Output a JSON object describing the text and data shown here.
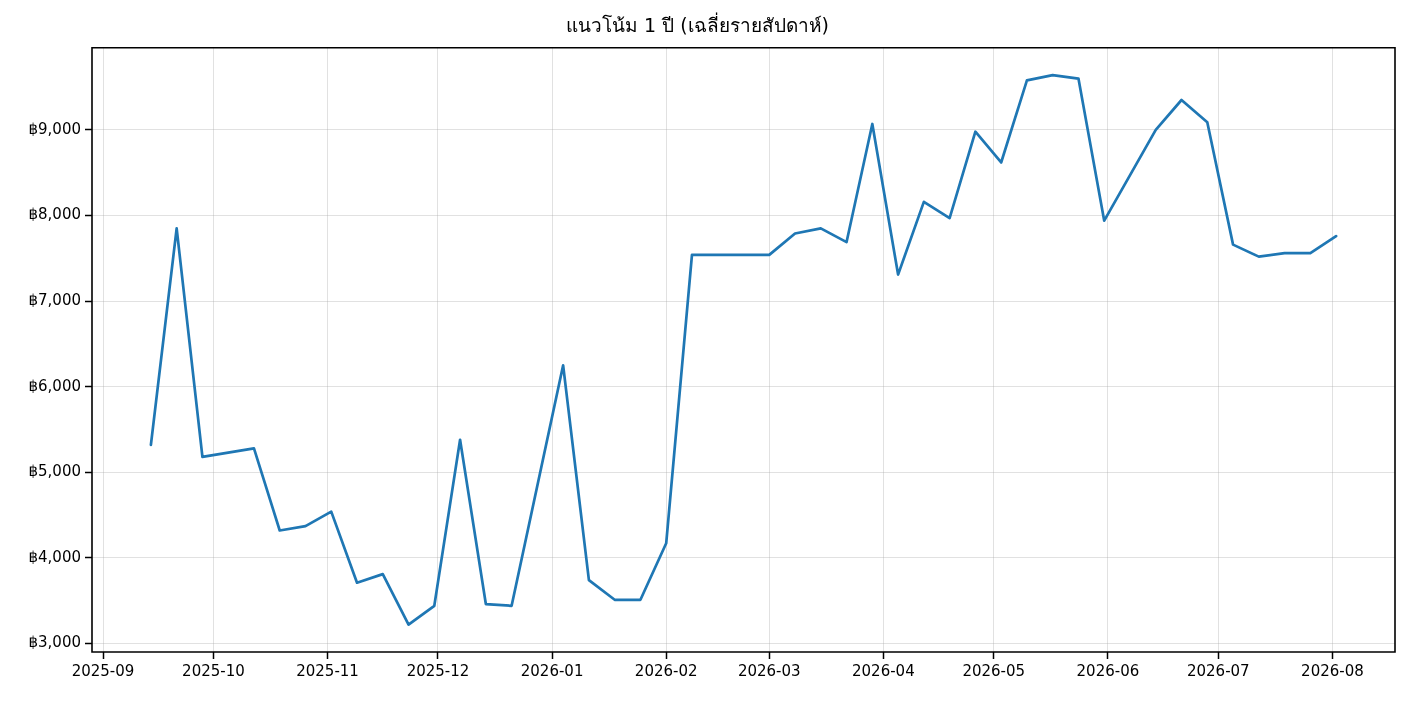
{
  "chart_data": {
    "type": "line",
    "title": "แนวโน้ม 1 ปี (เฉลี่ยรายสัปดาห์)",
    "x": [
      "2025-09-14",
      "2025-09-21",
      "2025-09-28",
      "2025-10-12",
      "2025-10-19",
      "2025-10-26",
      "2025-11-02",
      "2025-11-09",
      "2025-11-16",
      "2025-11-23",
      "2025-11-30",
      "2025-12-07",
      "2025-12-14",
      "2025-12-21",
      "2026-01-04",
      "2026-01-11",
      "2026-01-18",
      "2026-01-25",
      "2026-02-01",
      "2026-02-08",
      "2026-03-01",
      "2026-03-08",
      "2026-03-15",
      "2026-03-22",
      "2026-03-29",
      "2026-04-05",
      "2026-04-12",
      "2026-04-19",
      "2026-04-26",
      "2026-05-03",
      "2026-05-10",
      "2026-05-17",
      "2026-05-24",
      "2026-05-31",
      "2026-06-14",
      "2026-06-21",
      "2026-06-28",
      "2026-07-05",
      "2026-07-12",
      "2026-07-19",
      "2026-07-26",
      "2026-08-02"
    ],
    "series": [
      {
        "color": "#1f77b4",
        "values": [
          5320,
          7850,
          5180,
          5280,
          4320,
          4370,
          4540,
          3710,
          3810,
          3220,
          3440,
          5380,
          3460,
          3440,
          6250,
          3740,
          3510,
          3510,
          4170,
          7540,
          7540,
          7790,
          7850,
          7690,
          9070,
          7310,
          8160,
          7970,
          8980,
          8620,
          9580,
          9640,
          9600,
          7940,
          9000,
          9350,
          9090,
          7660,
          7520,
          7560,
          7560,
          7760
        ]
      }
    ],
    "xlim": [
      "2025-08-29",
      "2026-08-18"
    ],
    "xticks": [
      "2025-09",
      "2025-10",
      "2025-11",
      "2025-12",
      "2026-01",
      "2026-02",
      "2026-03",
      "2026-04",
      "2026-05",
      "2026-06",
      "2026-07",
      "2026-08"
    ],
    "ylim": [
      2900,
      9960
    ],
    "yticks": [
      {
        "value": 3000,
        "label": "฿3,000"
      },
      {
        "value": 4000,
        "label": "฿4,000"
      },
      {
        "value": 5000,
        "label": "฿5,000"
      },
      {
        "value": 6000,
        "label": "฿6,000"
      },
      {
        "value": 7000,
        "label": "฿7,000"
      },
      {
        "value": 8000,
        "label": "฿8,000"
      },
      {
        "value": 9000,
        "label": "฿9,000"
      }
    ],
    "grid": true,
    "marker": "none",
    "line_style": "solid"
  }
}
